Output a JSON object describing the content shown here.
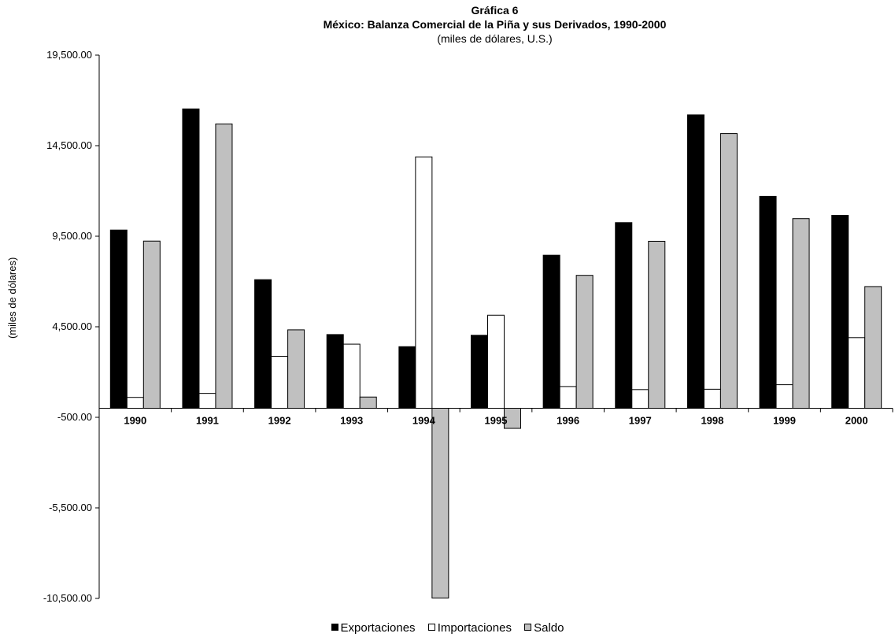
{
  "chart_data": {
    "type": "bar",
    "title": "Gráfica 6",
    "subtitle": "México: Balanza Comercial de la Piña y sus Derivados, 1990-2000",
    "unit_note": "(miles de dólares, U.S.)",
    "ylabel": "(miles de dólares)",
    "xlabel": "",
    "categories": [
      "1990",
      "1991",
      "1992",
      "1993",
      "1994",
      "1995",
      "1996",
      "1997",
      "1998",
      "1999",
      "2000"
    ],
    "series": [
      {
        "name": "Exportaciones",
        "color": "#000000",
        "values": [
          9840,
          16530,
          7100,
          4070,
          3400,
          4030,
          8450,
          10250,
          16200,
          11700,
          10650
        ]
      },
      {
        "name": "Importaciones",
        "color": "#ffffff",
        "values": [
          600,
          820,
          2870,
          3540,
          13880,
          5140,
          1200,
          1030,
          1050,
          1300,
          3900
        ]
      },
      {
        "name": "Saldo",
        "color": "#c0c0c0",
        "values": [
          9230,
          15700,
          4330,
          620,
          -10480,
          -1110,
          7340,
          9220,
          15170,
          10470,
          6720
        ]
      }
    ],
    "y_ticks": [
      "19,500.00",
      "14,500.00",
      "9,500.00",
      "4,500.00",
      "-500.00",
      "-5,500.00",
      "-10,500.00"
    ],
    "ylim": [
      -10500,
      19500
    ],
    "grid": false,
    "legend_position": "bottom"
  }
}
